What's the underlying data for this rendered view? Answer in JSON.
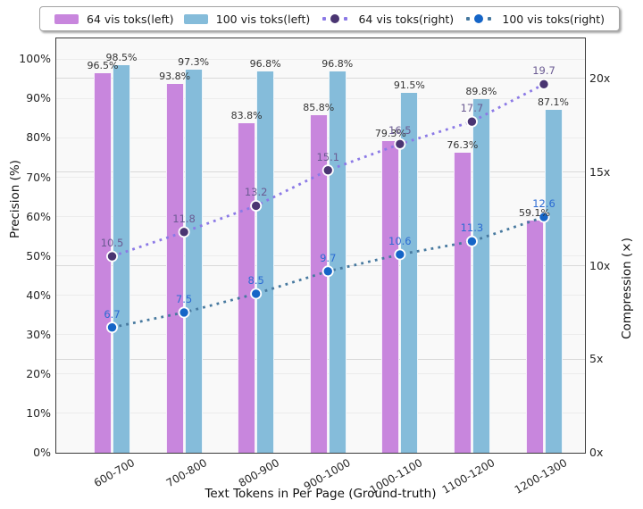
{
  "chart_data": {
    "type": "bar",
    "subtype": "grouped-bars-with-dual-axis-dotted-lines",
    "categories": [
      "600-700",
      "700-800",
      "800-900",
      "900-1000",
      "1000-1100",
      "1100-1200",
      "1200-1300"
    ],
    "series": [
      {
        "name": "64 vis toks(left)",
        "type": "bar",
        "axis": "left",
        "color": "#C886DD",
        "values": [
          96.5,
          93.8,
          83.8,
          85.8,
          79.3,
          76.3,
          59.1
        ],
        "labels": [
          "96.5%",
          "93.8%",
          "83.8%",
          "85.8%",
          "79.3%",
          "76.3%",
          "59.1%"
        ]
      },
      {
        "name": "100 vis toks(left)",
        "type": "bar",
        "axis": "left",
        "color": "#85BCDA",
        "values": [
          98.5,
          97.3,
          96.8,
          96.8,
          91.5,
          89.8,
          87.1
        ],
        "labels": [
          "98.5%",
          "97.3%",
          "96.8%",
          "96.8%",
          "91.5%",
          "89.8%",
          "87.1%"
        ]
      },
      {
        "name": "64 vis toks(right)",
        "type": "line",
        "axis": "right",
        "line_color": "#8B79E6",
        "marker_color": "#4A3572",
        "label_color": "#6A5A92",
        "values": [
          10.5,
          11.8,
          13.2,
          15.1,
          16.5,
          17.7,
          19.7
        ],
        "labels": [
          "10.5",
          "11.8",
          "13.2",
          "15.1",
          "16.5",
          "17.7",
          "19.7"
        ]
      },
      {
        "name": "100 vis toks(right)",
        "type": "line",
        "axis": "right",
        "line_color": "#47799F",
        "marker_color": "#1565C7",
        "label_color": "#2B6BD3",
        "values": [
          6.7,
          7.5,
          8.5,
          9.7,
          10.6,
          11.3,
          12.6
        ],
        "labels": [
          "6.7",
          "7.5",
          "8.5",
          "9.7",
          "10.6",
          "11.3",
          "12.6"
        ]
      }
    ],
    "xlabel": "Text Tokens in Per Page (Ground-truth)",
    "ylabel_left": "Precision (%)",
    "ylabel_right": "Compression (×)",
    "left_axis": {
      "tick_labels": [
        "0%",
        "10%",
        "20%",
        "30%",
        "40%",
        "50%",
        "60%",
        "70%",
        "80%",
        "90%",
        "100%"
      ],
      "tick_values": [
        0,
        10,
        20,
        30,
        40,
        50,
        60,
        70,
        80,
        90,
        100
      ],
      "ylim": [
        0,
        105.3
      ],
      "gridline_color": "#ECECEC"
    },
    "right_axis": {
      "tick_labels": [
        "0x",
        "5x",
        "10x",
        "15x",
        "20x"
      ],
      "tick_values": [
        0,
        5,
        10,
        15,
        20
      ],
      "ylim": [
        0,
        22.15
      ],
      "gridline_color": "#D9D9D9"
    },
    "grid": true,
    "legend_position": "top",
    "plot_background": "#f9f9f9"
  },
  "legend": {
    "items": [
      {
        "label": "64 vis toks(left)",
        "swatch": "bar",
        "color": "#C886DD"
      },
      {
        "label": "100 vis toks(left)",
        "swatch": "bar",
        "color": "#85BCDA"
      },
      {
        "label": "64 vis toks(right)",
        "swatch": "line",
        "line_color": "#8B79E6",
        "dot_color": "#4A3572"
      },
      {
        "label": "100 vis toks(right)",
        "swatch": "line",
        "line_color": "#47799F",
        "dot_color": "#1565C7"
      }
    ]
  }
}
